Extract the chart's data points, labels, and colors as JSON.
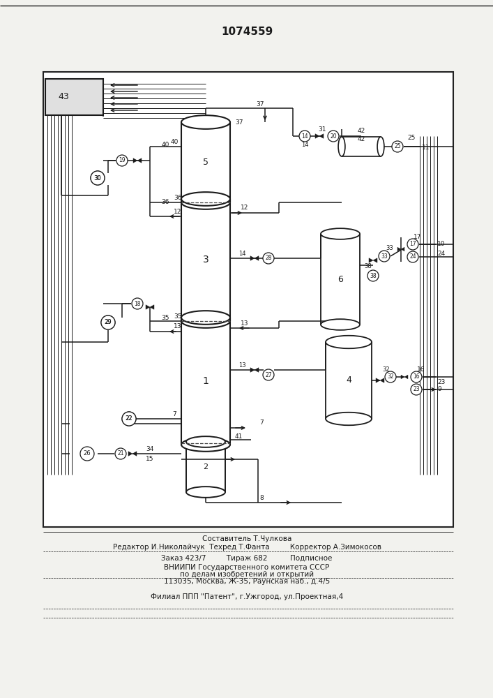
{
  "title": "1074559",
  "bg_color": "#f2f2ee",
  "line_color": "#1a1a1a",
  "footer": {
    "line1": "Составитель Т.Чулкова",
    "line2": "Редактор И.Николайчук  Техред Т.Фанта         Корректор А.Зимокосов",
    "line3": "Заказ 423/7         Тираж 682          Подписное",
    "line4": "ВНИИПИ Государственного комитета СССР",
    "line5": "по делам изобретений и открытий",
    "line6": "113035, Москва, Ж-35, Раунская наб., д.4/5",
    "line7": "Филиал ППП \"Патент\", г.Ужгород, ул.Проектная,4"
  }
}
